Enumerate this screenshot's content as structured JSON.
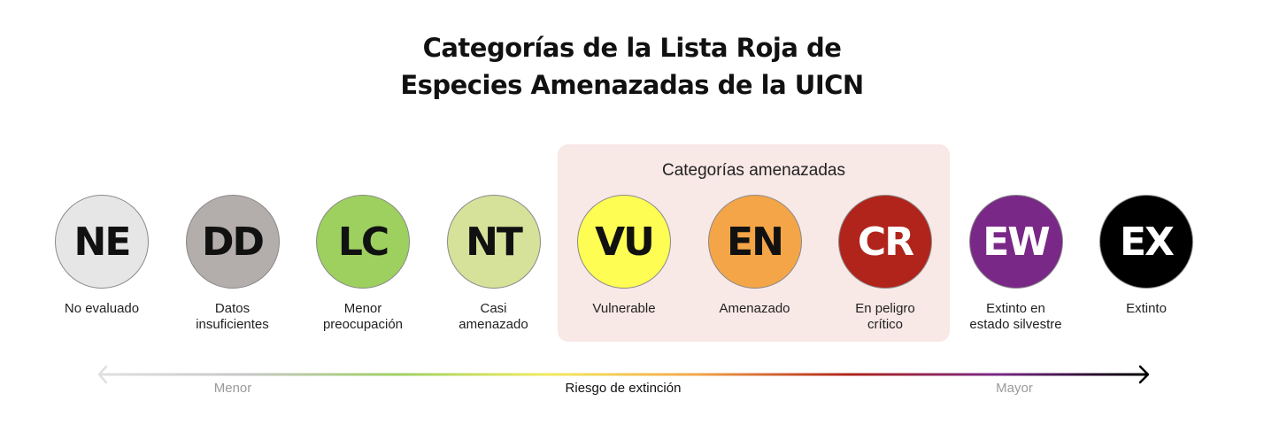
{
  "title": {
    "line1": "Categorías de la Lista Roja de",
    "line2": "Especies Amenazadas de la UICN"
  },
  "threatened_group": {
    "label": "Categorías amenazadas"
  },
  "categories": [
    {
      "code": "NE",
      "label_lines": [
        "No evaluado"
      ],
      "fill": "#e6e6e6",
      "text_color": "#111111"
    },
    {
      "code": "DD",
      "label_lines": [
        "Datos",
        "insuficientes"
      ],
      "fill": "#b3adab",
      "text_color": "#111111"
    },
    {
      "code": "LC",
      "label_lines": [
        "Menor",
        "preocupación"
      ],
      "fill": "#9dd05e",
      "text_color": "#111111"
    },
    {
      "code": "NT",
      "label_lines": [
        "Casi",
        "amenazado"
      ],
      "fill": "#d6e19a",
      "text_color": "#111111"
    },
    {
      "code": "VU",
      "label_lines": [
        "Vulnerable"
      ],
      "fill": "#fdfd53",
      "text_color": "#111111"
    },
    {
      "code": "EN",
      "label_lines": [
        "Amenazado"
      ],
      "fill": "#f4a548",
      "text_color": "#111111"
    },
    {
      "code": "CR",
      "label_lines": [
        "En peligro",
        "crítico"
      ],
      "fill": "#b0241b",
      "text_color": "#ffffff"
    },
    {
      "code": "EW",
      "label_lines": [
        "Extinto en",
        "estado silvestre"
      ],
      "fill": "#7a2887",
      "text_color": "#ffffff"
    },
    {
      "code": "EX",
      "label_lines": [
        "Extinto"
      ],
      "fill": "#000000",
      "text_color": "#ffffff"
    }
  ],
  "axis": {
    "low_label": "Menor",
    "center_label": "Riesgo de extinción",
    "high_label": "Mayor",
    "gradient_colors": [
      "#e0e0e0",
      "#c6c6c6",
      "#9dd05e",
      "#f2ea5e",
      "#f4a548",
      "#b0241b",
      "#7a2887",
      "#000000"
    ],
    "low_label_color": "#9a9a9a",
    "center_label_color": "#111111",
    "high_label_color": "#9a9a9a"
  }
}
